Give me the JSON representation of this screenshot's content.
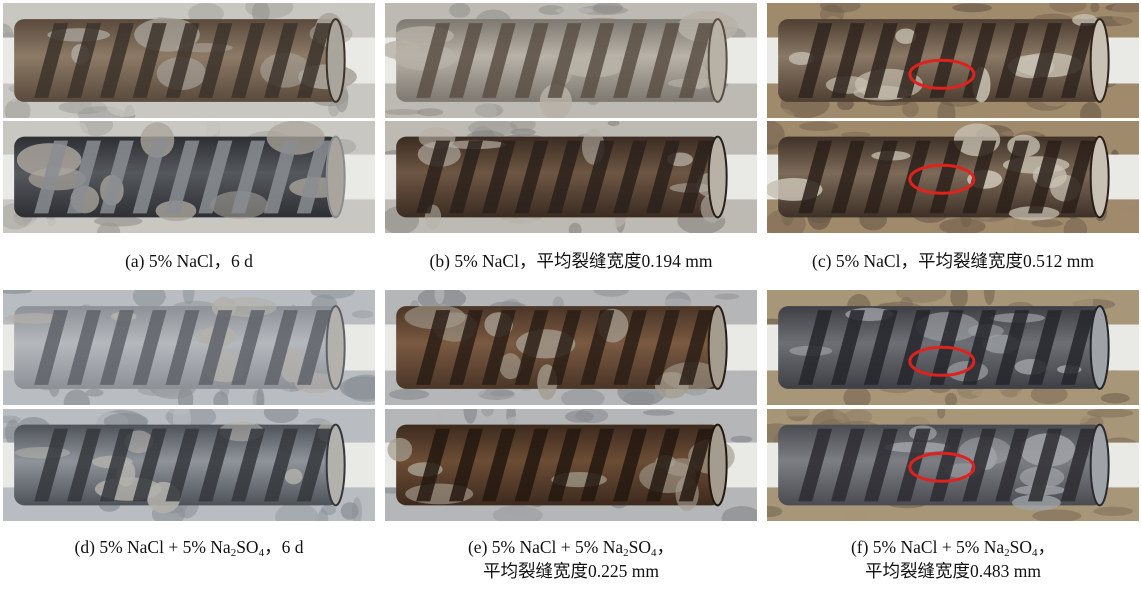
{
  "figure": {
    "panels": [
      {
        "id": "a",
        "caption": "(a) 5% NaCl，6 d",
        "caption_line2": "",
        "theme": "ground-grey",
        "red_circles": false
      },
      {
        "id": "b",
        "caption": "(b) 5% NaCl，平均裂缝宽度0.194 mm",
        "caption_line2": "",
        "theme": "mortar-rust",
        "red_circles": false
      },
      {
        "id": "c",
        "caption": "(c) 5% NaCl，平均裂缝宽度0.512 mm",
        "caption_line2": "",
        "theme": "heavy-rust",
        "red_circles": true
      },
      {
        "id": "d",
        "caption_html": "(d) 5% NaCl + 5% Na<sub>2</sub>SO<sub>4</sub>，6 d",
        "caption_line2": "",
        "theme": "light-grey",
        "red_circles": false
      },
      {
        "id": "e",
        "caption_html": "(e) 5% NaCl + 5% Na<sub>2</sub>SO<sub>4</sub>，",
        "caption_line2": "平均裂缝宽度0.225 mm",
        "theme": "dark-rust",
        "red_circles": false
      },
      {
        "id": "f",
        "caption_html": "(f) 5% NaCl + 5% Na<sub>2</sub>SO<sub>4</sub>，",
        "caption_line2": "平均裂缝宽度0.483 mm",
        "theme": "heavy-rust-blue",
        "red_circles": true
      }
    ],
    "colors": {
      "highlight_circle": "#e0221f",
      "pipe": "#e9e9e6",
      "rust": "#7a4a26",
      "steel_dark": "#2f3033",
      "steel_grey": "#6d7075",
      "mortar": "#a7a39b"
    }
  }
}
